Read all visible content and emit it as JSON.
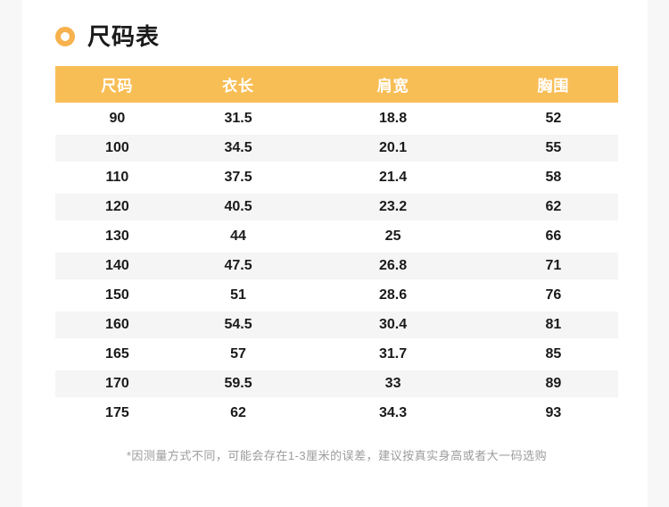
{
  "theme": {
    "page_background": "#F7F7F7",
    "card_background": "#FFFFFF",
    "accent": "#F7B14D",
    "header_background": "#F8BE56",
    "header_text_color": "#FFFFFF",
    "stripe_color": "#F5F5F5",
    "body_text_color": "#1A1A1A",
    "footnote_text_color": "#9C9C9C"
  },
  "section": {
    "title": "尺码表"
  },
  "table": {
    "columns": [
      "尺码",
      "衣长",
      "肩宽",
      "胸围"
    ],
    "rows": [
      [
        "90",
        "31.5",
        "18.8",
        "52"
      ],
      [
        "100",
        "34.5",
        "20.1",
        "55"
      ],
      [
        "110",
        "37.5",
        "21.4",
        "58"
      ],
      [
        "120",
        "40.5",
        "23.2",
        "62"
      ],
      [
        "130",
        "44",
        "25",
        "66"
      ],
      [
        "140",
        "47.5",
        "26.8",
        "71"
      ],
      [
        "150",
        "51",
        "28.6",
        "76"
      ],
      [
        "160",
        "54.5",
        "30.4",
        "81"
      ],
      [
        "165",
        "57",
        "31.7",
        "85"
      ],
      [
        "170",
        "59.5",
        "33",
        "89"
      ],
      [
        "175",
        "62",
        "34.3",
        "93"
      ]
    ]
  },
  "footnote": "*因测量方式不同，可能会存在1-3厘米的误差，建议按真实身高或者大一码选购"
}
